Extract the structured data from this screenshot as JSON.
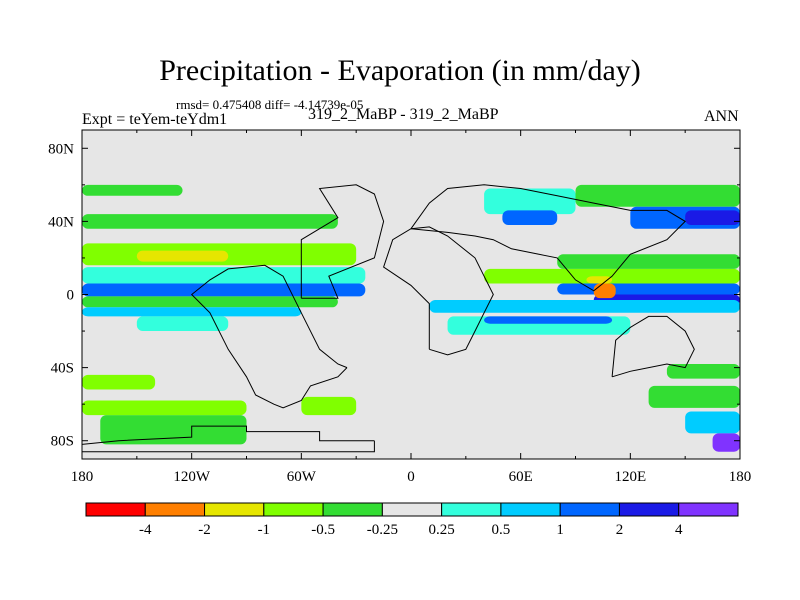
{
  "title": "Precipitation - Evaporation (in mm/day)",
  "stats": "rmsd= 0.475408  diff= -4.14739e-05",
  "experiment": "Expt = teYem-teYdm1",
  "run_label": "319_2_MaBP - 319_2_MaBP",
  "season": "ANN",
  "chart_data": {
    "type": "heatmap",
    "title": "Precipitation - Evaporation (in mm/day)",
    "xlabel": "",
    "ylabel": "",
    "xlim": [
      -180,
      180
    ],
    "ylim": [
      -90,
      90
    ],
    "x_ticks": [
      {
        "value": -180,
        "label": "180"
      },
      {
        "value": -120,
        "label": "120W"
      },
      {
        "value": -60,
        "label": "60W"
      },
      {
        "value": 0,
        "label": "0"
      },
      {
        "value": 60,
        "label": "60E"
      },
      {
        "value": 120,
        "label": "120E"
      },
      {
        "value": 180,
        "label": "180"
      }
    ],
    "y_ticks": [
      {
        "value": 80,
        "label": "80N"
      },
      {
        "value": 40,
        "label": "40N"
      },
      {
        "value": 0,
        "label": "0"
      },
      {
        "value": -40,
        "label": "40S"
      },
      {
        "value": -80,
        "label": "80S"
      }
    ],
    "colorbar": {
      "colors": [
        "#ff0000",
        "#ff7f00",
        "#e6e600",
        "#80ff00",
        "#33dd33",
        "#e6e6e6",
        "#33ffdd",
        "#00ccff",
        "#0066ff",
        "#1a1ae6",
        "#8033ff"
      ],
      "labels": [
        "-4",
        "-2",
        "-1",
        "-0.5",
        "-0.25",
        "0.25",
        "0.5",
        "1",
        "2",
        "4"
      ]
    },
    "background_color": "#e6e6e6",
    "bands": [
      {
        "lon": [
          -180,
          -125
        ],
        "lat": [
          54,
          60
        ],
        "level": 4
      },
      {
        "lon": [
          -180,
          -40
        ],
        "lat": [
          36,
          44
        ],
        "level": 4
      },
      {
        "lon": [
          -180,
          -30
        ],
        "lat": [
          16,
          28
        ],
        "level": 3
      },
      {
        "lon": [
          -150,
          -100
        ],
        "lat": [
          18,
          24
        ],
        "level": 2
      },
      {
        "lon": [
          -180,
          -25
        ],
        "lat": [
          6,
          15
        ],
        "level": 6
      },
      {
        "lon": [
          -180,
          -25
        ],
        "lat": [
          -1,
          6
        ],
        "level": 8
      },
      {
        "lon": [
          -180,
          -40
        ],
        "lat": [
          -7,
          -1
        ],
        "level": 4
      },
      {
        "lon": [
          -180,
          -60
        ],
        "lat": [
          -12,
          -7
        ],
        "level": 7
      },
      {
        "lon": [
          -150,
          -100
        ],
        "lat": [
          -20,
          -12
        ],
        "level": 6
      },
      {
        "lon": [
          -180,
          -140
        ],
        "lat": [
          -52,
          -44
        ],
        "level": 3
      },
      {
        "lon": [
          -170,
          -90
        ],
        "lat": [
          -82,
          -66
        ],
        "level": 4
      },
      {
        "lon": [
          -180,
          -90
        ],
        "lat": [
          -66,
          -58
        ],
        "level": 3
      },
      {
        "lon": [
          -60,
          -30
        ],
        "lat": [
          -66,
          -56
        ],
        "level": 3
      },
      {
        "lon": [
          40,
          90
        ],
        "lat": [
          44,
          58
        ],
        "level": 6
      },
      {
        "lon": [
          50,
          80
        ],
        "lat": [
          38,
          46
        ],
        "level": 8
      },
      {
        "lon": [
          90,
          180
        ],
        "lat": [
          48,
          60
        ],
        "level": 4
      },
      {
        "lon": [
          120,
          180
        ],
        "lat": [
          36,
          48
        ],
        "level": 8
      },
      {
        "lon": [
          150,
          180
        ],
        "lat": [
          38,
          46
        ],
        "level": 9
      },
      {
        "lon": [
          40,
          180
        ],
        "lat": [
          6,
          14
        ],
        "level": 3
      },
      {
        "lon": [
          80,
          180
        ],
        "lat": [
          14,
          22
        ],
        "level": 4
      },
      {
        "lon": [
          80,
          180
        ],
        "lat": [
          0,
          6
        ],
        "level": 8
      },
      {
        "lon": [
          100,
          180
        ],
        "lat": [
          -6,
          0
        ],
        "level": 9
      },
      {
        "lon": [
          10,
          180
        ],
        "lat": [
          -10,
          -3
        ],
        "level": 7
      },
      {
        "lon": [
          20,
          120
        ],
        "lat": [
          -22,
          -12
        ],
        "level": 6
      },
      {
        "lon": [
          40,
          110
        ],
        "lat": [
          -16,
          -12
        ],
        "level": 8
      },
      {
        "lon": [
          100,
          112
        ],
        "lat": [
          -2,
          6
        ],
        "level": 1
      },
      {
        "lon": [
          96,
          110
        ],
        "lat": [
          6,
          10
        ],
        "level": 2
      },
      {
        "lon": [
          140,
          180
        ],
        "lat": [
          -46,
          -38
        ],
        "level": 4
      },
      {
        "lon": [
          130,
          180
        ],
        "lat": [
          -62,
          -50
        ],
        "level": 4
      },
      {
        "lon": [
          150,
          180
        ],
        "lat": [
          -76,
          -64
        ],
        "level": 7
      },
      {
        "lon": [
          165,
          180
        ],
        "lat": [
          -86,
          -76
        ],
        "level": 10
      }
    ],
    "land_outlines": [
      [
        [
          -20,
          -80
        ],
        [
          -50,
          -80
        ],
        [
          -50,
          -75
        ],
        [
          -90,
          -75
        ],
        [
          -90,
          -72
        ],
        [
          -120,
          -72
        ],
        [
          -120,
          -78
        ],
        [
          -160,
          -80
        ],
        [
          -180,
          -82
        ],
        [
          -180,
          -86
        ],
        [
          -140,
          -86
        ],
        [
          -60,
          -86
        ],
        [
          -20,
          -86
        ],
        [
          -20,
          -80
        ]
      ],
      [
        [
          -35,
          -40
        ],
        [
          -40,
          -45
        ],
        [
          -55,
          -50
        ],
        [
          -60,
          -58
        ],
        [
          -70,
          -62
        ],
        [
          -75,
          -60
        ],
        [
          -85,
          -55
        ],
        [
          -90,
          -45
        ],
        [
          -100,
          -30
        ],
        [
          -110,
          -10
        ],
        [
          -120,
          0
        ],
        [
          -110,
          8
        ],
        [
          -100,
          14
        ],
        [
          -80,
          16
        ],
        [
          -70,
          10
        ],
        [
          -60,
          -10
        ],
        [
          -50,
          -30
        ],
        [
          -40,
          -38
        ],
        [
          -35,
          -40
        ]
      ],
      [
        [
          -60,
          -2
        ],
        [
          -40,
          -2
        ],
        [
          -45,
          10
        ],
        [
          -20,
          20
        ],
        [
          -15,
          40
        ],
        [
          -20,
          55
        ],
        [
          -30,
          60
        ],
        [
          -50,
          58
        ],
        [
          -40,
          42
        ],
        [
          -60,
          30
        ],
        [
          -60,
          -2
        ]
      ],
      [
        [
          10,
          -30
        ],
        [
          20,
          -33
        ],
        [
          30,
          -30
        ],
        [
          35,
          -20
        ],
        [
          40,
          -10
        ],
        [
          45,
          0
        ],
        [
          40,
          10
        ],
        [
          35,
          20
        ],
        [
          20,
          32
        ],
        [
          10,
          37
        ],
        [
          0,
          36
        ],
        [
          -10,
          30
        ],
        [
          -15,
          15
        ],
        [
          0,
          5
        ],
        [
          10,
          -5
        ],
        [
          10,
          -30
        ]
      ],
      [
        [
          0,
          36
        ],
        [
          10,
          50
        ],
        [
          20,
          58
        ],
        [
          40,
          60
        ],
        [
          60,
          58
        ],
        [
          80,
          54
        ],
        [
          100,
          50
        ],
        [
          120,
          46
        ],
        [
          140,
          46
        ],
        [
          150,
          40
        ],
        [
          140,
          30
        ],
        [
          120,
          22
        ],
        [
          110,
          10
        ],
        [
          100,
          2
        ],
        [
          90,
          8
        ],
        [
          80,
          20
        ],
        [
          70,
          22
        ],
        [
          55,
          25
        ],
        [
          45,
          30
        ],
        [
          35,
          32
        ],
        [
          20,
          34
        ],
        [
          0,
          36
        ]
      ],
      [
        [
          110,
          -45
        ],
        [
          120,
          -42
        ],
        [
          140,
          -38
        ],
        [
          150,
          -40
        ],
        [
          155,
          -30
        ],
        [
          150,
          -20
        ],
        [
          140,
          -12
        ],
        [
          130,
          -12
        ],
        [
          120,
          -18
        ],
        [
          112,
          -25
        ],
        [
          110,
          -45
        ]
      ]
    ]
  }
}
